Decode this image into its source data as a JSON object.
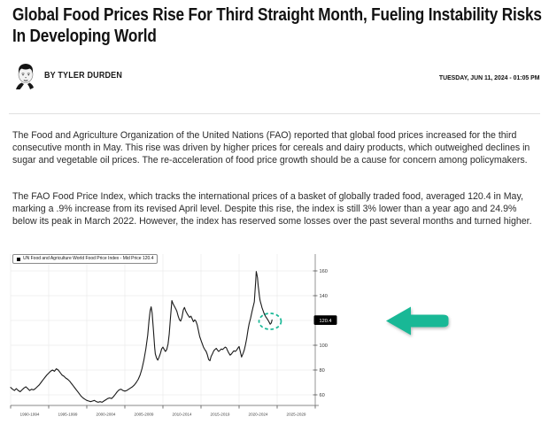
{
  "article": {
    "headline": "Global Food Prices Rise For Third Straight Month, Fueling Instability Risks In Developing World",
    "byline": "BY TYLER DURDEN",
    "date": "TUESDAY, JUN 11, 2024 - 01:05 PM",
    "paragraphs": [
      "The Food and Agriculture Organization of the United Nations (FAO) reported that global food prices increased for the third consecutive month in May. This rise was driven by higher prices for cereals and dairy products, which outweighed declines in sugar and vegetable oil prices. The re-acceleration of food price growth should be a cause for concern among policymakers.",
      "The FAO Food Price Index, which tracks the international prices of a basket of globally traded food, averaged 120.4 in May, marking a .9% increase from its revised April level. Despite this rise, the index is still 3% lower than a year ago and 24.9% below its peak in March 2022. However, the index has reserved some losses over the past several months and turned higher."
    ]
  },
  "colors": {
    "accent_teal": "#19b896",
    "chart_line": "#1a1a1a",
    "badge_bg": "#000000",
    "badge_text": "#ffffff",
    "gridline": "#ededed"
  },
  "chart_data": {
    "type": "line",
    "legend": "UN Food and Agriculture World Food Price Index - Mid Price 120.4",
    "legend_position": "top-left",
    "last_price_label": "120.4",
    "grid": true,
    "xlim": [
      1990,
      2030
    ],
    "ylim": [
      51,
      176
    ],
    "ytick_labels": [
      "160",
      "140",
      "100",
      "80",
      "60"
    ],
    "ytick_values": [
      160,
      140,
      100,
      80,
      60
    ],
    "ygrid_values": [
      160,
      140,
      120,
      100,
      80,
      60
    ],
    "xgrid_years": [
      1990,
      1995,
      2000,
      2005,
      2010,
      2015,
      2020,
      2025,
      2030
    ],
    "xtick_labels": [
      "1990-1994",
      "1995-1999",
      "2000-2004",
      "2005-2009",
      "2010-2014",
      "2015-2019",
      "2020-2024",
      "2025-2029"
    ],
    "annotations": {
      "highlight_circle": {
        "year": 2024.05,
        "value": 118.8,
        "style": "dashed-teal-ellipse"
      },
      "arrow": {
        "direction": "left",
        "color": "#19b896",
        "points_at": "last price 120.4"
      }
    },
    "series": [
      {
        "name": "UN Food and Agriculture World Food Price Index - Mid Price",
        "points": [
          [
            1990,
            66
          ],
          [
            1990.25,
            64.5
          ],
          [
            1990.5,
            63.5
          ],
          [
            1990.75,
            65
          ],
          [
            1991,
            63.5
          ],
          [
            1991.25,
            62.5
          ],
          [
            1991.5,
            64
          ],
          [
            1991.75,
            65.5
          ],
          [
            1992,
            66.5
          ],
          [
            1992.25,
            65
          ],
          [
            1992.5,
            63.5
          ],
          [
            1992.75,
            64.5
          ],
          [
            1993,
            64
          ],
          [
            1993.25,
            65
          ],
          [
            1993.5,
            66.5
          ],
          [
            1993.75,
            68
          ],
          [
            1994,
            70
          ],
          [
            1994.25,
            72
          ],
          [
            1994.5,
            74
          ],
          [
            1994.75,
            76
          ],
          [
            1995,
            77.5
          ],
          [
            1995.25,
            79
          ],
          [
            1995.5,
            80
          ],
          [
            1995.75,
            79
          ],
          [
            1996,
            81
          ],
          [
            1996.25,
            80
          ],
          [
            1996.5,
            78
          ],
          [
            1996.75,
            76
          ],
          [
            1997,
            75
          ],
          [
            1997.25,
            73.5
          ],
          [
            1997.5,
            72.5
          ],
          [
            1997.75,
            71
          ],
          [
            1998,
            69
          ],
          [
            1998.25,
            67
          ],
          [
            1998.5,
            65
          ],
          [
            1998.75,
            63
          ],
          [
            1999,
            61
          ],
          [
            1999.25,
            59
          ],
          [
            1999.5,
            57.5
          ],
          [
            1999.75,
            56.5
          ],
          [
            2000,
            55.5
          ],
          [
            2000.25,
            55
          ],
          [
            2000.5,
            54.5
          ],
          [
            2000.75,
            55
          ],
          [
            2001,
            55.5
          ],
          [
            2001.25,
            54.5
          ],
          [
            2001.5,
            54
          ],
          [
            2001.75,
            54.5
          ],
          [
            2002,
            54
          ],
          [
            2002.25,
            55
          ],
          [
            2002.5,
            56
          ],
          [
            2002.75,
            57
          ],
          [
            2003,
            57.5
          ],
          [
            2003.25,
            57
          ],
          [
            2003.5,
            58.5
          ],
          [
            2003.75,
            60.5
          ],
          [
            2004,
            62.5
          ],
          [
            2004.25,
            64
          ],
          [
            2004.5,
            64.5
          ],
          [
            2004.75,
            63.5
          ],
          [
            2005,
            63
          ],
          [
            2005.25,
            63.5
          ],
          [
            2005.5,
            64.5
          ],
          [
            2005.75,
            65.5
          ],
          [
            2006,
            66.5
          ],
          [
            2006.25,
            68
          ],
          [
            2006.5,
            70
          ],
          [
            2006.75,
            72.5
          ],
          [
            2007,
            76
          ],
          [
            2007.25,
            81
          ],
          [
            2007.5,
            88
          ],
          [
            2007.75,
            97
          ],
          [
            2008,
            108
          ],
          [
            2008.17,
            120
          ],
          [
            2008.33,
            128
          ],
          [
            2008.45,
            131
          ],
          [
            2008.58,
            126
          ],
          [
            2008.75,
            112
          ],
          [
            2008.92,
            98
          ],
          [
            2009,
            93
          ],
          [
            2009.17,
            89.5
          ],
          [
            2009.33,
            88
          ],
          [
            2009.5,
            90.5
          ],
          [
            2009.67,
            93.5
          ],
          [
            2009.83,
            97
          ],
          [
            2010,
            98.5
          ],
          [
            2010.17,
            96.5
          ],
          [
            2010.33,
            95
          ],
          [
            2010.5,
            96.5
          ],
          [
            2010.67,
            101
          ],
          [
            2010.83,
            109
          ],
          [
            2011,
            123
          ],
          [
            2011.17,
            136
          ],
          [
            2011.33,
            133.5
          ],
          [
            2011.5,
            131.5
          ],
          [
            2011.67,
            129.5
          ],
          [
            2011.83,
            127.5
          ],
          [
            2012,
            123.5
          ],
          [
            2012.17,
            120.5
          ],
          [
            2012.33,
            119.5
          ],
          [
            2012.5,
            122.5
          ],
          [
            2012.67,
            128.5
          ],
          [
            2012.83,
            130.5
          ],
          [
            2013,
            127.5
          ],
          [
            2013.17,
            125.5
          ],
          [
            2013.33,
            124
          ],
          [
            2013.5,
            122.5
          ],
          [
            2013.67,
            123.5
          ],
          [
            2013.83,
            121.5
          ],
          [
            2014,
            119
          ],
          [
            2014.17,
            120.5
          ],
          [
            2014.33,
            119.5
          ],
          [
            2014.5,
            116.5
          ],
          [
            2014.67,
            111.5
          ],
          [
            2014.83,
            107
          ],
          [
            2015,
            104
          ],
          [
            2015.17,
            101
          ],
          [
            2015.33,
            98.5
          ],
          [
            2015.5,
            96.5
          ],
          [
            2015.67,
            95
          ],
          [
            2015.83,
            92.5
          ],
          [
            2016,
            88.5
          ],
          [
            2016.17,
            87.5
          ],
          [
            2016.33,
            91
          ],
          [
            2016.5,
            93
          ],
          [
            2016.67,
            95.5
          ],
          [
            2016.83,
            96.5
          ],
          [
            2017,
            97.5
          ],
          [
            2017.17,
            96
          ],
          [
            2017.33,
            95
          ],
          [
            2017.5,
            96
          ],
          [
            2017.67,
            97
          ],
          [
            2017.83,
            96.5
          ],
          [
            2018,
            97.5
          ],
          [
            2018.17,
            98.5
          ],
          [
            2018.33,
            98
          ],
          [
            2018.5,
            95.5
          ],
          [
            2018.67,
            93.5
          ],
          [
            2018.83,
            92
          ],
          [
            2019,
            93
          ],
          [
            2019.17,
            94.5
          ],
          [
            2019.33,
            95.5
          ],
          [
            2019.5,
            95
          ],
          [
            2019.67,
            96
          ],
          [
            2019.83,
            97.5
          ],
          [
            2020,
            99
          ],
          [
            2020.17,
            94.5
          ],
          [
            2020.33,
            90.5
          ],
          [
            2020.5,
            93
          ],
          [
            2020.67,
            96
          ],
          [
            2020.83,
            100
          ],
          [
            2021,
            105.5
          ],
          [
            2021.17,
            112.5
          ],
          [
            2021.33,
            117.5
          ],
          [
            2021.5,
            121.5
          ],
          [
            2021.67,
            126.5
          ],
          [
            2021.83,
            130.5
          ],
          [
            2022,
            135
          ],
          [
            2022.17,
            151
          ],
          [
            2022.25,
            159.5
          ],
          [
            2022.33,
            157.5
          ],
          [
            2022.42,
            154.5
          ],
          [
            2022.5,
            148.5
          ],
          [
            2022.58,
            144.5
          ],
          [
            2022.67,
            139.5
          ],
          [
            2022.75,
            136.5
          ],
          [
            2022.83,
            134.5
          ],
          [
            2022.92,
            132.5
          ],
          [
            2023,
            130.5
          ],
          [
            2023.17,
            127.5
          ],
          [
            2023.33,
            125
          ],
          [
            2023.5,
            123
          ],
          [
            2023.67,
            121.5
          ],
          [
            2023.83,
            120
          ],
          [
            2024,
            118
          ],
          [
            2024.08,
            117
          ],
          [
            2024.17,
            117.5
          ],
          [
            2024.25,
            118.5
          ],
          [
            2024.33,
            120.4
          ]
        ]
      }
    ]
  }
}
